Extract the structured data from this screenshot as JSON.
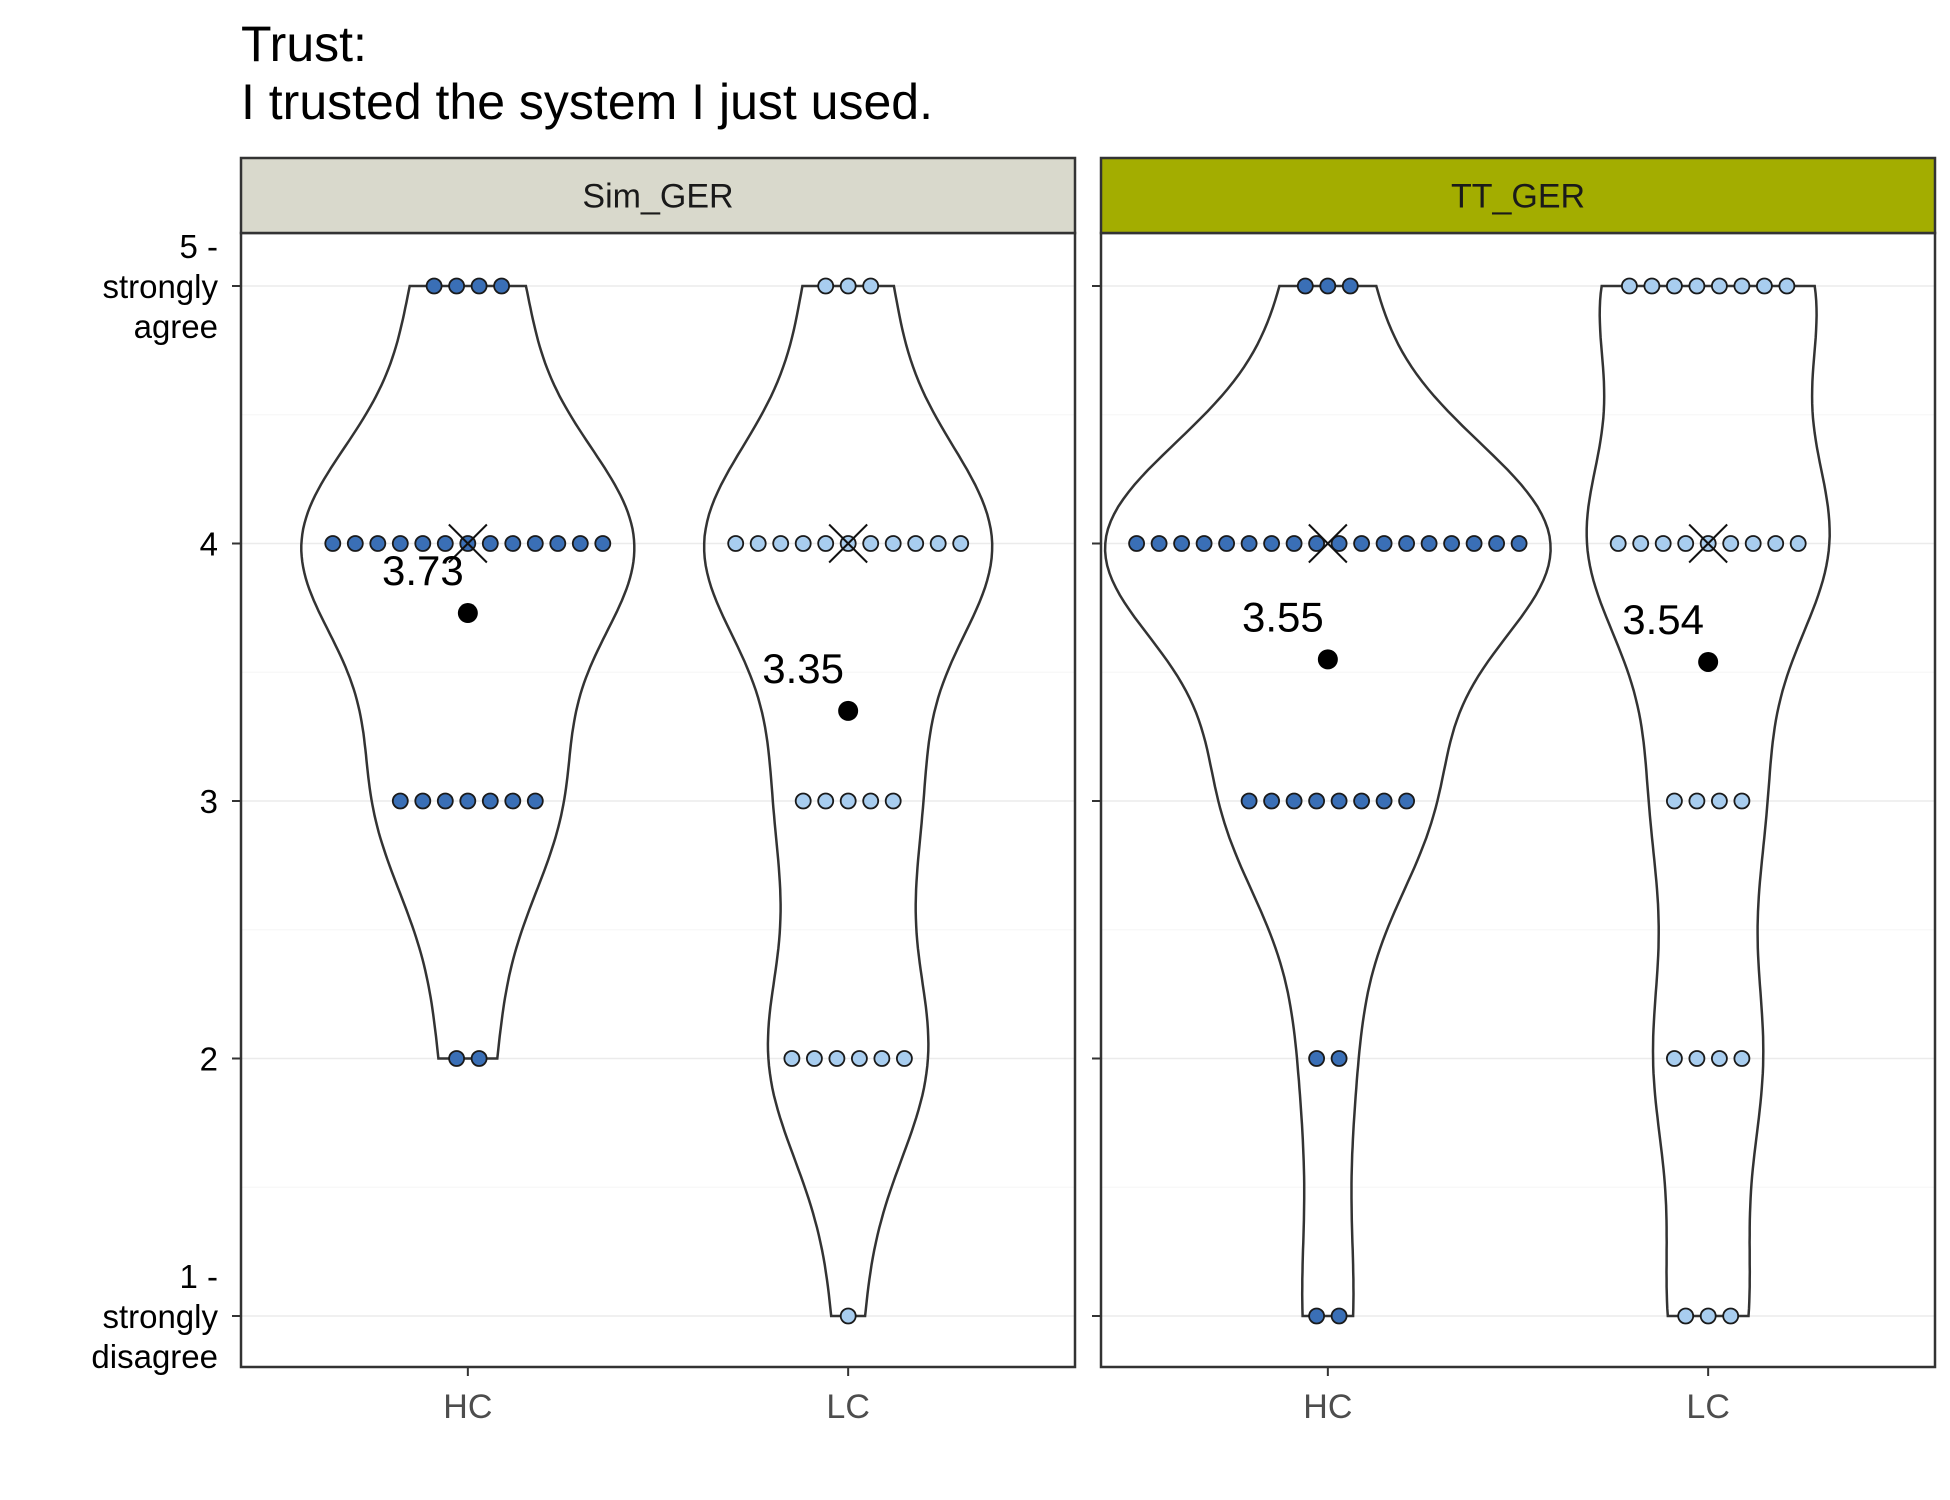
{
  "chart_data": {
    "type": "violin",
    "title": [
      "Trust:",
      "I trusted the system I just used."
    ],
    "xlabel": "",
    "ylabel": "",
    "ylim": [
      0.8,
      5.2
    ],
    "yticks": [
      {
        "value": 5,
        "lines": [
          "5 -",
          "strongly",
          "agree"
        ]
      },
      {
        "value": 4,
        "lines": [
          "4"
        ]
      },
      {
        "value": 3,
        "lines": [
          "3"
        ]
      },
      {
        "value": 2,
        "lines": [
          "2"
        ]
      },
      {
        "value": 1,
        "lines": [
          "1 -",
          "strongly",
          "disagree"
        ]
      }
    ],
    "grid": true,
    "categories": [
      "HC",
      "LC"
    ],
    "facets": [
      {
        "name": "Sim_GER",
        "strip_color": "#d9d9cc",
        "groups": [
          {
            "category": "HC",
            "color": "#3a6fb6",
            "mean": 3.73,
            "mean_label": "3.73",
            "median": 4,
            "counts": {
              "1": 0,
              "2": 2,
              "3": 7,
              "4": 13,
              "5": 4
            }
          },
          {
            "category": "LC",
            "color": "#a8cdef",
            "mean": 3.35,
            "mean_label": "3.35",
            "median": 4,
            "counts": {
              "1": 1,
              "2": 6,
              "3": 5,
              "4": 11,
              "5": 3
            }
          }
        ]
      },
      {
        "name": "TT_GER",
        "strip_color": "#a3ad00",
        "groups": [
          {
            "category": "HC",
            "color": "#3a6fb6",
            "mean": 3.55,
            "mean_label": "3.55",
            "median": 4,
            "counts": {
              "1": 2,
              "2": 2,
              "3": 8,
              "4": 18,
              "5": 3
            }
          },
          {
            "category": "LC",
            "color": "#a8cdef",
            "mean": 3.54,
            "mean_label": "3.54",
            "median": 4,
            "counts": {
              "1": 3,
              "2": 4,
              "3": 4,
              "4": 9,
              "5": 8
            }
          }
        ]
      }
    ]
  }
}
